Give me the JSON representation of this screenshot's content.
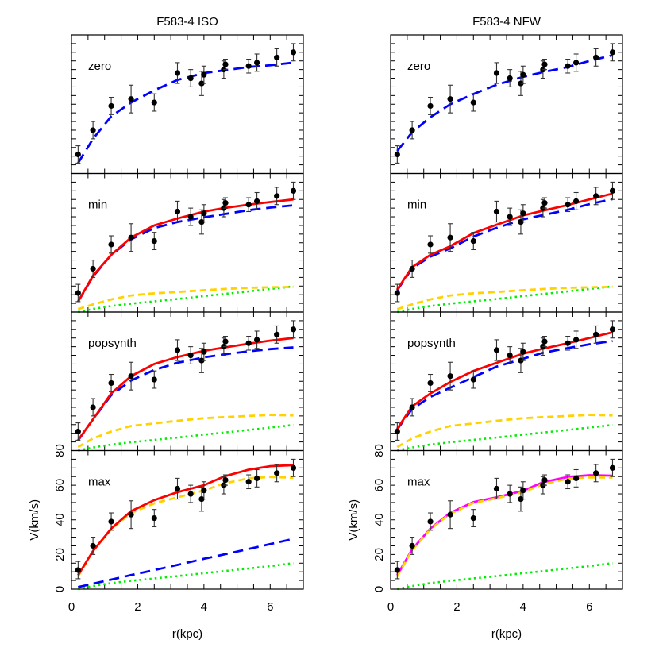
{
  "chart_data": [
    {
      "type": "line",
      "title": "F583-4 ISO",
      "xlabel": "r(kpc)",
      "ylabel": "V(km/s)",
      "xlim": [
        0,
        7
      ],
      "ylim": [
        0,
        80
      ],
      "xticks": [
        "0",
        "2",
        "4",
        "6"
      ],
      "yticks": [
        "0",
        "20",
        "40",
        "60",
        "80"
      ],
      "grid": false,
      "observed": {
        "r": [
          0.2,
          0.65,
          1.2,
          1.8,
          2.5,
          3.2,
          3.6,
          3.93,
          4.0,
          4.6,
          4.65,
          5.35,
          5.6,
          6.2,
          6.7
        ],
        "v": [
          11,
          25,
          39,
          43,
          41,
          58,
          55,
          52,
          57,
          60,
          63,
          62,
          64,
          67,
          70
        ],
        "err": [
          5,
          5,
          5,
          8,
          5,
          6,
          5,
          7,
          5,
          5,
          3,
          4,
          5,
          5,
          5
        ]
      },
      "model_r": [
        0.2,
        0.65,
        1.2,
        1.8,
        2.5,
        3.2,
        4.0,
        4.6,
        5.35,
        6.0,
        6.7
      ],
      "panels": [
        {
          "label": "zero",
          "series": [
            {
              "color": "#0000ff",
              "style": "long-dash",
              "v": [
                6,
                20,
                33,
                41,
                48,
                54,
                58,
                59.5,
                61.5,
                62.5,
                64
              ]
            }
          ]
        },
        {
          "label": "min",
          "series": [
            {
              "color": "#00ee00",
              "style": "dotted",
              "v": [
                0,
                1.8,
                3.5,
                4.8,
                6.2,
                7.5,
                9.2,
                10.4,
                11.9,
                13.3,
                14.8
              ]
            },
            {
              "color": "#ffd200",
              "style": "dashed",
              "v": [
                1.7,
                4.4,
                7.3,
                9.6,
                10.8,
                11.6,
                12.6,
                13.3,
                14,
                14.3,
                14.5
              ]
            },
            {
              "color": "#0000ff",
              "style": "long-dash",
              "v": [
                6,
                20.5,
                33,
                42,
                48.5,
                52,
                54.7,
                56.5,
                58.8,
                60.3,
                61.6
              ]
            },
            {
              "color": "#ff0000",
              "style": "solid",
              "v": [
                6,
                21,
                33,
                43,
                50,
                54,
                58,
                60,
                62,
                63.5,
                65
              ]
            }
          ]
        },
        {
          "label": "popsynth",
          "series": [
            {
              "color": "#00ee00",
              "style": "dotted",
              "v": [
                0,
                1.8,
                3.5,
                4.8,
                6.2,
                7.5,
                9.2,
                10.4,
                11.9,
                13.3,
                14.8
              ]
            },
            {
              "color": "#ffd200",
              "style": "dashed",
              "v": [
                2,
                7,
                11,
                14.2,
                15.7,
                17.2,
                18.7,
                19.3,
                20,
                20.6,
                20.3
              ]
            },
            {
              "color": "#0000ff",
              "style": "long-dash",
              "v": [
                5.8,
                18,
                32,
                40.5,
                46.6,
                50.7,
                53.8,
                55.5,
                57.3,
                58.6,
                59.6
              ]
            },
            {
              "color": "#ff0000",
              "style": "solid",
              "v": [
                6,
                18,
                33,
                43,
                50,
                54,
                57.6,
                59.5,
                61.7,
                63.5,
                65
              ]
            }
          ]
        },
        {
          "label": "max",
          "series": [
            {
              "color": "#00ee00",
              "style": "dotted",
              "v": [
                0,
                1.8,
                3.5,
                4.8,
                6.2,
                7.5,
                9.2,
                10.4,
                11.9,
                13.3,
                15
              ]
            },
            {
              "color": "#0000ff",
              "style": "long-dash",
              "v": [
                1.2,
                3.1,
                5.5,
                8.1,
                11,
                14,
                17.5,
                20,
                23.2,
                26,
                29
              ]
            },
            {
              "color": "#ffd200",
              "style": "dashed",
              "v": [
                7.3,
                22,
                34.6,
                44,
                49.5,
                53,
                57,
                61,
                64,
                64.8,
                64.3
              ]
            },
            {
              "color": "#ff0000",
              "style": "solid",
              "v": [
                8,
                22,
                35,
                45,
                51.4,
                56,
                60,
                65,
                69,
                71,
                71.6
              ]
            }
          ]
        }
      ]
    },
    {
      "type": "line",
      "title": "F583-4 NFW",
      "xlabel": "r(kpc)",
      "ylabel": "V(km/s)",
      "xlim": [
        0,
        7
      ],
      "ylim": [
        0,
        80
      ],
      "xticks": [
        "0",
        "2",
        "4",
        "6"
      ],
      "yticks": [
        "0",
        "20",
        "40",
        "60",
        "80"
      ],
      "grid": false,
      "observed": {
        "r": [
          0.2,
          0.65,
          1.2,
          1.8,
          2.5,
          3.2,
          3.6,
          3.93,
          4.0,
          4.6,
          4.65,
          5.35,
          5.6,
          6.2,
          6.7
        ],
        "v": [
          11,
          25,
          39,
          43,
          41,
          58,
          55,
          52,
          57,
          60,
          63,
          62,
          64,
          67,
          70
        ],
        "err": [
          5,
          5,
          5,
          8,
          5,
          6,
          5,
          7,
          5,
          5,
          3,
          4,
          5,
          5,
          5
        ]
      },
      "model_r": [
        0.2,
        0.65,
        1.2,
        1.8,
        2.5,
        3.2,
        4.0,
        4.6,
        5.35,
        6.0,
        6.7
      ],
      "panels": [
        {
          "label": "zero",
          "series": [
            {
              "color": "#0000ff",
              "style": "long-dash",
              "v": [
                13,
                23.8,
                32.5,
                40,
                45.9,
                51.2,
                55.8,
                58.5,
                61.5,
                65,
                68.3
              ]
            }
          ]
        },
        {
          "label": "min",
          "series": [
            {
              "color": "#00ee00",
              "style": "dotted",
              "v": [
                0,
                1.8,
                3.5,
                4.8,
                6.2,
                7.5,
                9.2,
                10.4,
                11.9,
                13.3,
                14.8
              ]
            },
            {
              "color": "#ffd200",
              "style": "dashed",
              "v": [
                1.7,
                4.4,
                7.3,
                9.6,
                10.8,
                11.6,
                12.6,
                13.3,
                14,
                14.3,
                14.5
              ]
            },
            {
              "color": "#0000ff",
              "style": "long-dash",
              "v": [
                12.6,
                25.3,
                32,
                36.7,
                43.6,
                48.6,
                53.5,
                56,
                59,
                62.3,
                65.2
              ]
            },
            {
              "color": "#ff0000",
              "style": "solid",
              "v": [
                13,
                26,
                33,
                38,
                45.6,
                50.4,
                55.8,
                58.5,
                61.8,
                65,
                68.4
              ]
            }
          ]
        },
        {
          "label": "popsynth",
          "series": [
            {
              "color": "#00ee00",
              "style": "dotted",
              "v": [
                0,
                1.8,
                3.5,
                4.8,
                6.2,
                7.5,
                9.2,
                10.4,
                11.9,
                13.3,
                14.8
              ]
            },
            {
              "color": "#ffd200",
              "style": "dashed",
              "v": [
                2,
                7,
                11,
                14.2,
                15.7,
                17.2,
                18.7,
                19.3,
                20,
                20.6,
                20.3
              ]
            },
            {
              "color": "#0000ff",
              "style": "long-dash",
              "v": [
                12.3,
                24,
                31,
                36.3,
                42.4,
                48.5,
                53,
                56.5,
                59.2,
                61.4,
                63.2
              ]
            },
            {
              "color": "#ff0000",
              "style": "solid",
              "v": [
                12.6,
                25.6,
                33,
                39.6,
                46,
                50.7,
                56,
                58.8,
                62,
                65,
                68.3
              ]
            }
          ]
        },
        {
          "label": "max",
          "series": [
            {
              "color": "#00ee00",
              "style": "dotted",
              "v": [
                0,
                1.8,
                3.5,
                4.8,
                6.2,
                7.5,
                9.2,
                10.4,
                11.9,
                13.3,
                15
              ]
            },
            {
              "color": "#ff00ff",
              "style": "solid",
              "v": [
                8,
                22.9,
                35,
                44,
                50.3,
                53,
                56.8,
                61.7,
                64.8,
                65.8,
                65.5
              ]
            },
            {
              "color": "#ffd200",
              "style": "dashed",
              "v": [
                7.3,
                22.5,
                34.6,
                43.5,
                49.8,
                52.5,
                56,
                60.5,
                63.8,
                64.5,
                64.5
              ]
            }
          ]
        }
      ]
    }
  ]
}
